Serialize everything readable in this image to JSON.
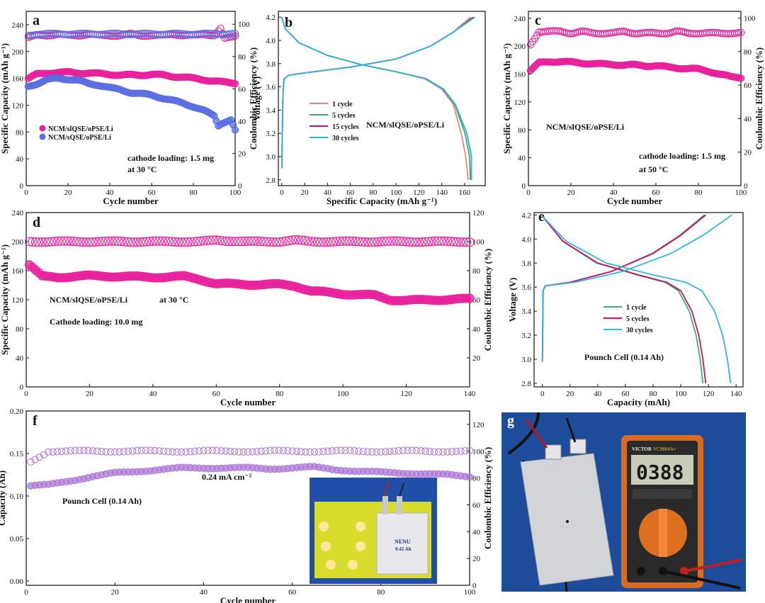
{
  "chart_data": [
    {
      "panel": "a",
      "type": "scatter",
      "xlabel": "Cycle number",
      "ylabel": "Specific Capacity (mAh g⁻¹)",
      "ylabel2": "Coulombic Efficiency (%)",
      "xlim": [
        0,
        100
      ],
      "xticks": [
        0,
        20,
        40,
        60,
        80,
        100
      ],
      "ylim": [
        0,
        260
      ],
      "yticks": [
        0,
        40,
        80,
        120,
        160,
        200,
        240
      ],
      "ylim2": [
        0,
        108
      ],
      "yticks2": [
        0,
        20,
        40,
        60,
        80,
        100
      ],
      "legend": [
        "NCM/slQSE/oPSE/Li",
        "NCM/sQSE/oPSE/Li"
      ],
      "colors": [
        "#e8209c",
        "#5b6ee0"
      ],
      "annotations": [
        "cathode loading: 1.5 mg",
        "at 30 °C"
      ],
      "series": [
        {
          "name": "NCM/slQSE/oPSE/Li",
          "axis": "left",
          "fill": true,
          "x": [
            1,
            5,
            10,
            15,
            20,
            25,
            30,
            35,
            40,
            45,
            50,
            55,
            60,
            65,
            70,
            75,
            80,
            85,
            90,
            95,
            100
          ],
          "values": [
            160,
            166,
            168,
            169,
            169,
            168,
            168,
            167,
            166,
            165,
            165,
            165,
            166,
            165,
            163,
            162,
            160,
            158,
            156,
            154,
            153
          ]
        },
        {
          "name": "NCM/sQSE/oPSE/Li",
          "axis": "left",
          "fill": true,
          "x": [
            1,
            5,
            10,
            15,
            20,
            25,
            30,
            35,
            40,
            45,
            50,
            55,
            60,
            65,
            70,
            75,
            80,
            85,
            90,
            92,
            94,
            96,
            98,
            100
          ],
          "values": [
            148,
            152,
            158,
            160,
            159,
            157,
            152,
            150,
            146,
            143,
            139,
            137,
            135,
            131,
            127,
            123,
            118,
            112,
            104,
            90,
            94,
            96,
            98,
            82
          ]
        },
        {
          "name": "",
          "axis": "right",
          "fill": false,
          "x": [
            1,
            5,
            10,
            15,
            20,
            25,
            30,
            35,
            40,
            45,
            50,
            55,
            60,
            65,
            70,
            75,
            80,
            85,
            90,
            93,
            95,
            100
          ],
          "values": [
            92,
            93,
            93,
            94,
            93,
            93,
            94,
            93,
            93,
            93,
            94,
            93,
            93,
            93,
            94,
            93,
            93,
            94,
            93,
            97,
            91,
            93
          ]
        },
        {
          "name": "",
          "axis": "right",
          "fill": false,
          "x": [
            1,
            5,
            10,
            15,
            20,
            25,
            30,
            35,
            40,
            45,
            50,
            55,
            60,
            65,
            70,
            75,
            80,
            85,
            90,
            95,
            100
          ],
          "values": [
            93,
            94,
            94,
            94,
            94,
            94,
            94,
            94,
            94,
            94,
            94,
            94,
            94,
            94,
            94,
            94,
            94,
            94,
            94,
            94,
            94
          ]
        }
      ]
    },
    {
      "panel": "b",
      "type": "line",
      "xlabel": "Specific Capacity (mAh g⁻¹)",
      "ylabel": "Voltage (V)",
      "xlim": [
        -3,
        178
      ],
      "xticks": [
        0,
        20,
        40,
        60,
        80,
        100,
        120,
        140,
        160
      ],
      "ylim": [
        2.75,
        4.25
      ],
      "yticks": [
        2.8,
        3.0,
        3.2,
        3.4,
        3.6,
        3.8,
        4.0,
        4.2
      ],
      "legend": [
        "1 cycle",
        "5 cycles",
        "15 cycles",
        "30 cycles"
      ],
      "colors": [
        "#f08080",
        "#40b070",
        "#d0106f",
        "#30b8d8"
      ],
      "annotations": [
        "NCM/slQSE/oPSE/Li"
      ],
      "series": [
        {
          "name": "1 cycle",
          "charge_capacity": 165,
          "discharge_capacity": 163
        },
        {
          "name": "5 cycles",
          "charge_capacity": 167,
          "discharge_capacity": 165
        },
        {
          "name": "15 cycles",
          "charge_capacity": 168,
          "discharge_capacity": 166
        },
        {
          "name": "30 cycles",
          "charge_capacity": 169,
          "discharge_capacity": 166
        }
      ]
    },
    {
      "panel": "c",
      "type": "scatter",
      "xlabel": "Cycle number",
      "ylabel": "Specific Capacity (mAh g⁻¹)",
      "ylabel2": "Coulombic Efficiency (%)",
      "xlim": [
        0,
        100
      ],
      "xticks": [
        0,
        20,
        40,
        60,
        80,
        100
      ],
      "ylim": [
        0,
        250
      ],
      "yticks": [
        0,
        40,
        80,
        120,
        160,
        200,
        240
      ],
      "ylim2": [
        0,
        104
      ],
      "yticks2": [
        0,
        20,
        40,
        60,
        80,
        100
      ],
      "colors": [
        "#e8209c"
      ],
      "annotations": [
        "NCM/slQSE/oPSE/Li",
        "cathode loading: 1.5 mg",
        "at 50 °C"
      ],
      "series": [
        {
          "name": "",
          "axis": "left",
          "fill": true,
          "x": [
            1,
            5,
            10,
            15,
            20,
            25,
            30,
            35,
            40,
            45,
            50,
            55,
            60,
            65,
            70,
            75,
            80,
            85,
            90,
            95,
            100
          ],
          "values": [
            165,
            176,
            178,
            178,
            177,
            176,
            175,
            174,
            174,
            173,
            173,
            172,
            172,
            170,
            169,
            168,
            167,
            164,
            160,
            156,
            155
          ]
        },
        {
          "name": "",
          "axis": "right",
          "fill": false,
          "x": [
            1,
            5,
            10,
            15,
            20,
            25,
            30,
            35,
            40,
            45,
            50,
            55,
            60,
            65,
            70,
            75,
            80,
            85,
            90,
            95,
            100
          ],
          "values": [
            84,
            92,
            92,
            92,
            91,
            92,
            91,
            91,
            91,
            92,
            91,
            91,
            91,
            91,
            92,
            91,
            91,
            91,
            91,
            91,
            91
          ]
        }
      ]
    },
    {
      "panel": "d",
      "type": "scatter",
      "xlabel": "Cycle number",
      "ylabel": "Specific Capacity (mAh g⁻¹)",
      "ylabel2": "Coulombic Efficiency (%)",
      "xlim": [
        0,
        140
      ],
      "xticks": [
        0,
        20,
        40,
        60,
        80,
        100,
        120,
        140
      ],
      "ylim": [
        0,
        240
      ],
      "yticks": [
        0,
        40,
        80,
        120,
        160,
        200,
        240
      ],
      "ylim2": [
        0,
        120
      ],
      "yticks2": [
        20,
        40,
        60,
        80,
        100,
        120
      ],
      "colors": [
        "#e8209c"
      ],
      "annotations": [
        "NCM/slQSE/oPSE/Li",
        "at 30 °C",
        "Cathode loading: 10.0 mg"
      ],
      "series": [
        {
          "name": "",
          "axis": "left",
          "fill": true,
          "x": [
            1,
            5,
            10,
            20,
            30,
            40,
            50,
            55,
            60,
            70,
            80,
            85,
            90,
            100,
            110,
            115,
            120,
            130,
            140
          ],
          "values": [
            168,
            152,
            151,
            153,
            152,
            151,
            152,
            148,
            142,
            141,
            141,
            139,
            132,
            128,
            126,
            120,
            119,
            120,
            121
          ]
        },
        {
          "name": "",
          "axis": "right",
          "fill": false,
          "x": [
            1,
            5,
            10,
            20,
            30,
            40,
            50,
            55,
            60,
            70,
            80,
            85,
            90,
            100,
            110,
            120,
            130,
            140
          ],
          "values": [
            100,
            100,
            100,
            100,
            100,
            100,
            100,
            100,
            101,
            100,
            100,
            101,
            100,
            100,
            100,
            100,
            100,
            100
          ]
        }
      ]
    },
    {
      "panel": "e",
      "type": "line",
      "xlabel": "Capacity (mAh)",
      "ylabel": "Voltage (V)",
      "xlim": [
        -6,
        145
      ],
      "xticks": [
        0,
        20,
        40,
        60,
        80,
        100,
        120,
        140
      ],
      "ylim": [
        2.77,
        4.22
      ],
      "yticks": [
        2.8,
        3.0,
        3.2,
        3.4,
        3.6,
        3.8,
        4.0,
        4.2
      ],
      "legend": [
        "1 cycle",
        "5 cycles",
        "30 cycles"
      ],
      "colors": [
        "#40b070",
        "#d0106f",
        "#30b8d8"
      ],
      "annotations": [
        "Pounch Cell  (0.14 Ah)"
      ],
      "series": [
        {
          "name": "1 cycle",
          "charge_capacity": 117,
          "discharge_capacity": 116
        },
        {
          "name": "5 cycles",
          "charge_capacity": 118,
          "discharge_capacity": 118
        },
        {
          "name": "30 cycles",
          "charge_capacity": 137,
          "discharge_capacity": 136
        }
      ]
    },
    {
      "panel": "f",
      "type": "scatter",
      "xlabel": "Cycle number",
      "ylabel": "Capacity (Ah)",
      "ylabel2": "Coulombic Efficiency (%)",
      "xlim": [
        0,
        100
      ],
      "xticks": [
        0,
        20,
        40,
        60,
        80,
        100
      ],
      "ylim": [
        -0.005,
        0.2
      ],
      "yticks": [
        0.0,
        0.05,
        0.1,
        0.15,
        0.2
      ],
      "ylim2": [
        0,
        130
      ],
      "yticks2": [
        0,
        20,
        40,
        60,
        80,
        100,
        120
      ],
      "colors": [
        "#b07ad8"
      ],
      "annotations": [
        "Pounch Cell  (0.14 Ah)",
        "0.24 mA cm⁻²"
      ],
      "series": [
        {
          "name": "",
          "axis": "left",
          "fill": true,
          "x": [
            1,
            5,
            10,
            15,
            20,
            25,
            30,
            35,
            40,
            45,
            50,
            55,
            60,
            65,
            70,
            75,
            80,
            85,
            90,
            95,
            100
          ],
          "values": [
            0.112,
            0.113,
            0.118,
            0.123,
            0.127,
            0.129,
            0.131,
            0.133,
            0.133,
            0.133,
            0.133,
            0.132,
            0.133,
            0.134,
            0.131,
            0.129,
            0.128,
            0.127,
            0.126,
            0.125,
            0.123
          ]
        },
        {
          "name": "",
          "axis": "right",
          "fill": false,
          "x": [
            1,
            5,
            10,
            15,
            20,
            25,
            30,
            35,
            40,
            45,
            50,
            55,
            60,
            65,
            70,
            75,
            80,
            85,
            90,
            95,
            100
          ],
          "values": [
            92,
            100,
            100,
            100,
            100,
            100,
            100,
            100,
            100,
            100,
            100,
            100,
            100,
            100,
            100,
            100,
            100,
            100,
            100,
            100,
            100
          ]
        }
      ]
    }
  ],
  "panel_letters": [
    "a",
    "b",
    "c",
    "d",
    "e",
    "f",
    "g"
  ],
  "photos": {
    "inset_f": {
      "label_line1": "NENU",
      "label_line2": "0.42 Ah"
    },
    "panel_g": {
      "meter_reading": "0388",
      "meter_brand": "VICTOR",
      "meter_model": "VC9804A+"
    }
  }
}
